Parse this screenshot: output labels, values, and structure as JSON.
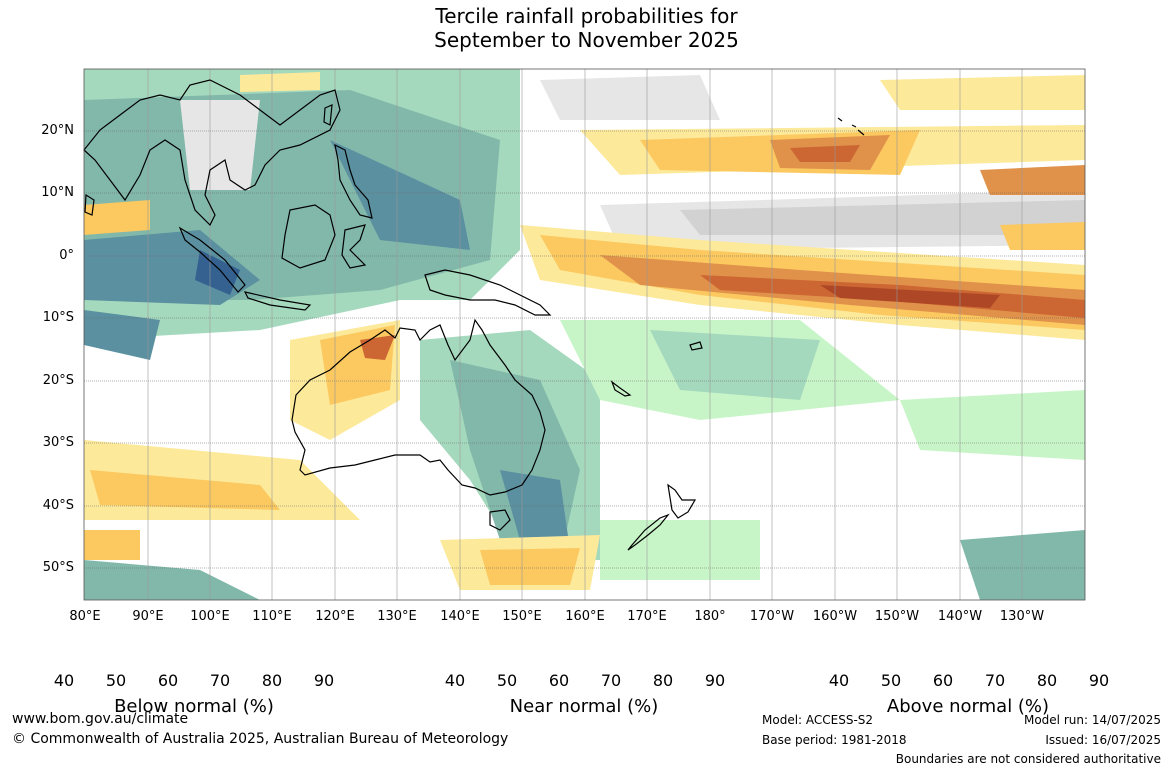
{
  "title_line1": "Tercile rainfall probabilities for",
  "title_line2": "September to November 2025",
  "lat_labels": [
    "20°N",
    "10°N",
    "0°",
    "10°S",
    "20°S",
    "30°S",
    "40°S",
    "50°S"
  ],
  "lon_labels": [
    "80°E",
    "90°E",
    "100°E",
    "110°E",
    "120°E",
    "130°E",
    "140°E",
    "150°E",
    "160°E",
    "170°E",
    "180°",
    "170°W",
    "160°W",
    "150°W",
    "140°W",
    "130°W"
  ],
  "colorbars": [
    {
      "label": "Below normal (%)",
      "ticks": [
        "40",
        "50",
        "60",
        "70",
        "80",
        "90"
      ],
      "colors": [
        "#fde99a",
        "#fcc860",
        "#e0914a",
        "#cc6633",
        "#ad4725",
        "#8a3318"
      ]
    },
    {
      "label": "Near normal (%)",
      "ticks": [
        "40",
        "50",
        "60",
        "70",
        "80",
        "90"
      ],
      "colors": [
        "#e6e6e6",
        "#d2d2d2",
        "#c2c2c2",
        "#b0b0b0",
        "#a0a0a0",
        "#808080"
      ]
    },
    {
      "label": "Above normal (%)",
      "ticks": [
        "40",
        "50",
        "60",
        "70",
        "80",
        "90"
      ],
      "colors": [
        "#c8f5c8",
        "#a5d9bd",
        "#82b8aa",
        "#5a90a0",
        "#346190",
        "#1d4a80"
      ]
    }
  ],
  "footer": {
    "website": "www.bom.gov.au/climate",
    "copyright": "© Commonwealth of Australia 2025, Australian Bureau of Meteorology",
    "model": "Model: ACCESS-S2",
    "base_period": "Base period: 1981-2018",
    "model_run": "Model run: 14/07/2025",
    "issued": "Issued: 16/07/2025",
    "disclaimer": "Boundaries are not considered authoritative"
  }
}
